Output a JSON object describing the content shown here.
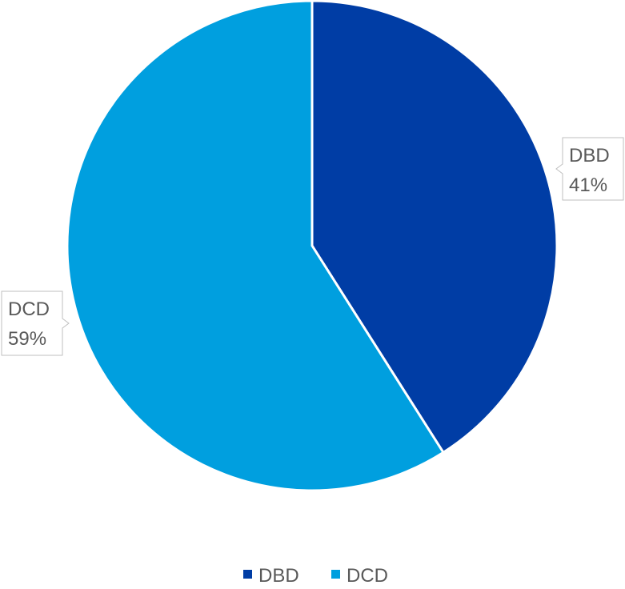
{
  "chart_data": {
    "type": "pie",
    "title": "",
    "categories": [
      "DBD",
      "DCD"
    ],
    "values": [
      41,
      59
    ],
    "data_labels": [
      {
        "category": "DBD",
        "percent": "41%"
      },
      {
        "category": "DCD",
        "percent": "59%"
      }
    ],
    "colors": [
      "#003DA5",
      "#009FDF"
    ],
    "start_angle_deg": 0,
    "direction": "clockwise",
    "legend": {
      "position": "bottom",
      "entries": [
        "DBD",
        "DCD"
      ]
    }
  }
}
